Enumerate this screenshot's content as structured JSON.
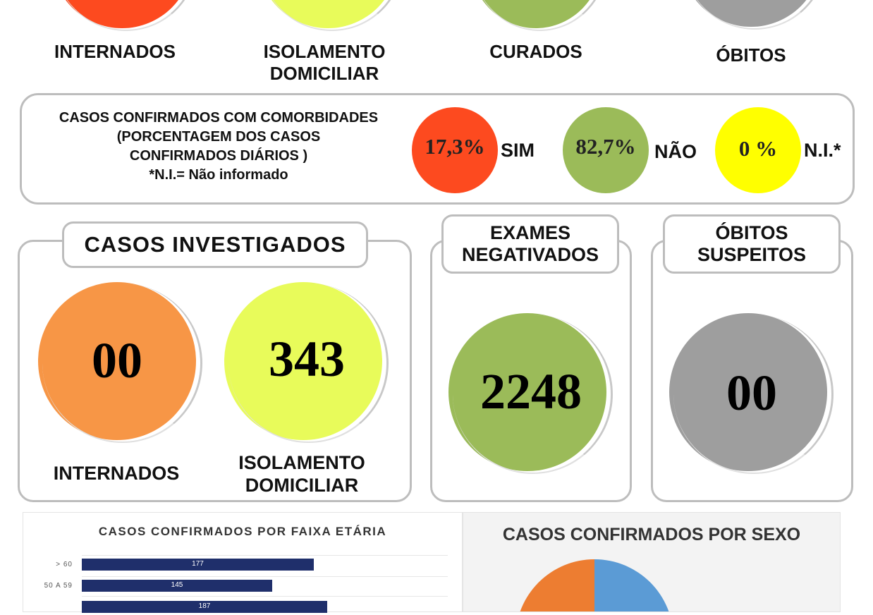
{
  "top_labels": {
    "internados": "INTERNADOS",
    "isolamento_line1": "ISOLAMENTO",
    "isolamento_line2": "DOMICILIAR",
    "curados": "CURADOS",
    "obitos": "ÓBITOS"
  },
  "comorbidades": {
    "line1": "CASOS CONFIRMADOS COM COMORBIDADES",
    "line2": "(PORCENTAGEM DOS CASOS",
    "line3": "CONFIRMADOS DIÁRIOS )",
    "note": "*N.I.= Não informado",
    "sim_value": "17,3%",
    "sim_label": "SIM",
    "nao_value": "82,7%",
    "nao_label": "NÃO",
    "ni_value": "0 %",
    "ni_label": "N.I.*"
  },
  "investigados": {
    "title": "CASOS INVESTIGADOS",
    "internados_value": "00",
    "internados_label": "INTERNADOS",
    "isolamento_value": "343",
    "isolamento_label_line1": "ISOLAMENTO",
    "isolamento_label_line2": "DOMICILIAR"
  },
  "exames": {
    "title_line1": "EXAMES",
    "title_line2": "NEGATIVADOS",
    "value": "2248"
  },
  "obitos_suspeitos": {
    "title_line1": "ÓBITOS",
    "title_line2": "SUSPEITOS",
    "value": "00"
  },
  "colors": {
    "red": "#fd4a1f",
    "yellow_green": "#e8fb5a",
    "green": "#9bbb59",
    "gray": "#9e9e9e",
    "orange": "#f79646",
    "yellow": "#ffff00",
    "navy": "#1f2f6b",
    "pie_blue": "#5b9bd5",
    "pie_orange": "#ed7d31"
  },
  "chart_data": [
    {
      "type": "bar",
      "orientation": "horizontal",
      "title": "CASOS CONFIRMADOS POR FAIXA ETÁRIA",
      "categories": [
        "> 60",
        "50 A 59"
      ],
      "values": [
        177,
        145
      ],
      "partially_visible_next_value": 187,
      "xlim": [
        0,
        250
      ],
      "grid": true
    },
    {
      "type": "pie",
      "title": "CASOS CONFIRMADOS POR SEXO",
      "slices_visible": [
        "blue",
        "orange"
      ],
      "note": "pie only partially visible; values not shown"
    }
  ]
}
